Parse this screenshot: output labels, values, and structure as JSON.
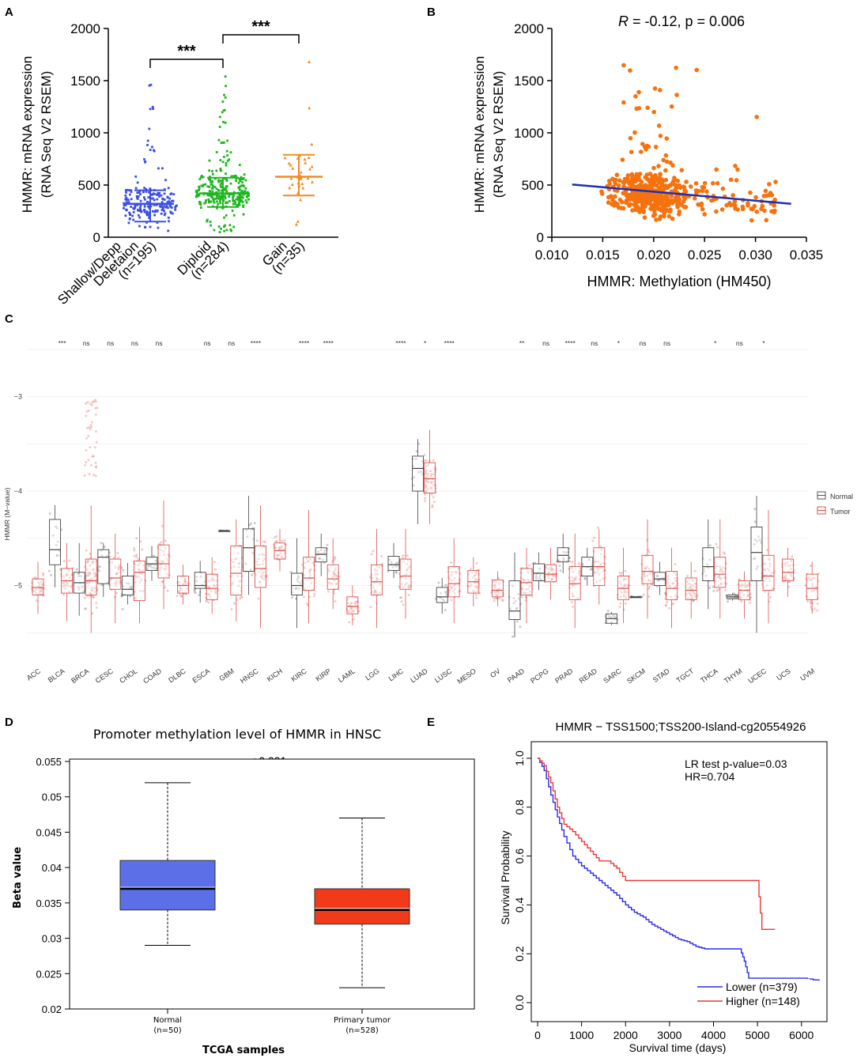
{
  "figure": {
    "panel_labels": [
      "A",
      "B",
      "C",
      "D",
      "E"
    ]
  },
  "chart_data": [
    {
      "panel": "A",
      "type": "scatter",
      "subtype": "dot-plot",
      "title": "",
      "ylabel_line1": "HMMR: mRNA expression",
      "ylabel_line2": "(RNA Seq V2 RSEM)",
      "ylim": [
        0,
        2000
      ],
      "yticks": [
        0,
        500,
        1000,
        1500,
        2000
      ],
      "groups": [
        {
          "label_line1": "Shallow/Depp",
          "label_line2": "Deletaion",
          "label_line3": "(n=195)",
          "n": 195,
          "median": 320,
          "q1": 150,
          "q3": 450,
          "max": 1460,
          "color": "#3b4fe0"
        },
        {
          "label_line1": "Diploid",
          "label_line2": "(n=284)",
          "n": 284,
          "median": 420,
          "q1": 290,
          "q3": 570,
          "max": 1540,
          "color": "#1fb51f"
        },
        {
          "label_line1": "Gain",
          "label_line2": "(n=35)",
          "n": 35,
          "median": 580,
          "q1": 400,
          "q3": 790,
          "max": 1680,
          "color": "#f5891f"
        }
      ],
      "significance": [
        {
          "from": 0,
          "to": 1,
          "label": "***"
        },
        {
          "from": 1,
          "to": 2,
          "label": "***"
        }
      ]
    },
    {
      "panel": "B",
      "type": "scatter",
      "title": "R = -0.12, p = 0.006",
      "title_r": "R",
      "title_rest": " = -0.12, p = 0.006",
      "xlabel": "HMMR: Methylation (HM450)",
      "ylabel_line1": "HMMR: mRNA expression",
      "ylabel_line2": "(RNA Seq V2 RSEM)",
      "xlim": [
        0.01,
        0.035
      ],
      "ylim": [
        0,
        2000
      ],
      "xticks": [
        "0.010",
        "0.015",
        "0.020",
        "0.025",
        "0.030",
        "0.035"
      ],
      "yticks": [
        0,
        500,
        1000,
        1500,
        2000
      ],
      "n_points": 514,
      "point_color": "#f5730f",
      "regression": {
        "x": [
          0.012,
          0.0335
        ],
        "y": [
          505,
          320
        ],
        "color": "#1a2fb8"
      }
    },
    {
      "panel": "C",
      "type": "box",
      "ylabel": "HMMR (M−value)",
      "yticks": [
        "−3",
        "−4",
        "−5"
      ],
      "ytick_values": [
        -3,
        -4,
        -5
      ],
      "ylim": [
        -5.85,
        -2.4
      ],
      "legend": {
        "position": "right",
        "entries": [
          {
            "name": "Normal",
            "color": "#555555"
          },
          {
            "name": "Tumor",
            "color": "#d9534f"
          }
        ]
      },
      "cancers": [
        {
          "name": "ACC",
          "sig": "",
          "tumor": {
            "med": -5.02,
            "q1": -5.1,
            "q3": -4.93,
            "lo": -5.3,
            "hi": -4.75
          }
        },
        {
          "name": "BLCA",
          "sig": "***",
          "normal": {
            "med": -4.62,
            "q1": -4.78,
            "q3": -4.3,
            "lo": -5.02,
            "hi": -4.15
          },
          "tumor": {
            "med": -4.95,
            "q1": -5.08,
            "q3": -4.82,
            "lo": -5.38,
            "hi": -4.55
          }
        },
        {
          "name": "BRCA",
          "sig": "ns",
          "normal": {
            "med": -4.97,
            "q1": -5.08,
            "q3": -4.86,
            "lo": -5.32,
            "hi": -4.55
          },
          "tumor": {
            "med": -4.95,
            "q1": -5.1,
            "q3": -4.72,
            "lo": -5.5,
            "hi": -4.15
          }
        },
        {
          "name": "CESC",
          "sig": "ns",
          "normal": {
            "med": -4.7,
            "q1": -4.98,
            "q3": -4.62,
            "lo": -5.12,
            "hi": -4.55
          },
          "tumor": {
            "med": -4.92,
            "q1": -5.04,
            "q3": -4.72,
            "lo": -5.4,
            "hi": -4.45
          }
        },
        {
          "name": "CHOL",
          "sig": "ns",
          "normal": {
            "med": -5.04,
            "q1": -5.1,
            "q3": -4.9,
            "lo": -5.2,
            "hi": -4.76
          },
          "tumor": {
            "med": -4.86,
            "q1": -5.16,
            "q3": -4.74,
            "lo": -5.4,
            "hi": -4.38
          }
        },
        {
          "name": "COAD",
          "sig": "ns",
          "normal": {
            "med": -4.77,
            "q1": -4.84,
            "q3": -4.7,
            "lo": -4.95,
            "hi": -4.58
          },
          "tumor": {
            "med": -4.77,
            "q1": -4.92,
            "q3": -4.57,
            "lo": -5.25,
            "hi": -4.1
          }
        },
        {
          "name": "DLBC",
          "sig": "",
          "tumor": {
            "med": -5.0,
            "q1": -5.08,
            "q3": -4.9,
            "lo": -5.2,
            "hi": -4.78
          }
        },
        {
          "name": "ESCA",
          "sig": "ns",
          "normal": {
            "med": -5.0,
            "q1": -5.03,
            "q3": -4.86,
            "lo": -5.18,
            "hi": -4.74
          },
          "tumor": {
            "med": -5.03,
            "q1": -5.15,
            "q3": -4.88,
            "lo": -5.3,
            "hi": -4.7
          }
        },
        {
          "name": "GBM",
          "sig": "ns",
          "normal": {
            "med": -4.42,
            "q1": -4.42,
            "q3": -4.42,
            "lo": -4.42,
            "hi": -4.42
          },
          "tumor": {
            "med": -4.87,
            "q1": -5.1,
            "q3": -4.58,
            "lo": -5.38,
            "hi": -4.3
          }
        },
        {
          "name": "HNSC",
          "sig": "****",
          "normal": {
            "med": -4.6,
            "q1": -4.85,
            "q3": -4.4,
            "lo": -5.1,
            "hi": -4.05
          },
          "tumor": {
            "med": -4.82,
            "q1": -5.02,
            "q3": -4.58,
            "lo": -5.45,
            "hi": -4.15
          }
        },
        {
          "name": "KICH",
          "sig": "",
          "tumor": {
            "med": -4.63,
            "q1": -4.72,
            "q3": -4.55,
            "lo": -4.85,
            "hi": -4.4
          }
        },
        {
          "name": "KIRC",
          "sig": "****",
          "normal": {
            "med": -5.0,
            "q1": -5.1,
            "q3": -4.87,
            "lo": -5.45,
            "hi": -4.5
          },
          "tumor": {
            "med": -4.92,
            "q1": -5.05,
            "q3": -4.7,
            "lo": -5.4,
            "hi": -4.2
          }
        },
        {
          "name": "KIRP",
          "sig": "****",
          "normal": {
            "med": -4.67,
            "q1": -4.75,
            "q3": -4.6,
            "lo": -4.9,
            "hi": -4.45
          },
          "tumor": {
            "med": -4.93,
            "q1": -5.04,
            "q3": -4.78,
            "lo": -5.25,
            "hi": -4.5
          }
        },
        {
          "name": "LAML",
          "sig": "",
          "tumor": {
            "med": -5.22,
            "q1": -5.3,
            "q3": -5.12,
            "lo": -5.42,
            "hi": -5.0
          }
        },
        {
          "name": "LGG",
          "sig": "",
          "tumor": {
            "med": -4.96,
            "q1": -5.1,
            "q3": -4.78,
            "lo": -5.45,
            "hi": -4.4
          }
        },
        {
          "name": "LIHC",
          "sig": "****",
          "normal": {
            "med": -4.78,
            "q1": -4.84,
            "q3": -4.69,
            "lo": -4.92,
            "hi": -4.55
          },
          "tumor": {
            "med": -4.9,
            "q1": -5.04,
            "q3": -4.72,
            "lo": -5.35,
            "hi": -4.4
          }
        },
        {
          "name": "LUAD",
          "sig": "*",
          "normal": {
            "med": -3.76,
            "q1": -4.0,
            "q3": -3.63,
            "lo": -4.35,
            "hi": -3.45
          },
          "tumor": {
            "med": -3.87,
            "q1": -4.02,
            "q3": -3.7,
            "lo": -4.35,
            "hi": -3.35
          }
        },
        {
          "name": "LUSC",
          "sig": "****",
          "normal": {
            "med": -5.12,
            "q1": -5.18,
            "q3": -5.02,
            "lo": -5.3,
            "hi": -4.92
          },
          "tumor": {
            "med": -4.98,
            "q1": -5.12,
            "q3": -4.8,
            "lo": -5.4,
            "hi": -4.5
          }
        },
        {
          "name": "MESO",
          "sig": "",
          "tumor": {
            "med": -4.96,
            "q1": -5.08,
            "q3": -4.84,
            "lo": -5.22,
            "hi": -4.7
          }
        },
        {
          "name": "OV",
          "sig": "",
          "tumor": {
            "med": -5.05,
            "q1": -5.12,
            "q3": -4.94,
            "lo": -5.22,
            "hi": -4.85
          }
        },
        {
          "name": "PAAD",
          "sig": "**",
          "normal": {
            "med": -5.27,
            "q1": -5.36,
            "q3": -4.95,
            "lo": -5.55,
            "hi": -4.65
          },
          "tumor": {
            "med": -4.97,
            "q1": -5.1,
            "q3": -4.82,
            "lo": -5.4,
            "hi": -4.6
          }
        },
        {
          "name": "PCPG",
          "sig": "ns",
          "normal": {
            "med": -4.87,
            "q1": -4.95,
            "q3": -4.77,
            "lo": -5.05,
            "hi": -4.65
          },
          "tumor": {
            "med": -4.88,
            "q1": -4.96,
            "q3": -4.78,
            "lo": -5.15,
            "hi": -4.6
          }
        },
        {
          "name": "PRAD",
          "sig": "****",
          "normal": {
            "med": -4.68,
            "q1": -4.75,
            "q3": -4.6,
            "lo": -4.87,
            "hi": -4.45
          },
          "tumor": {
            "med": -4.98,
            "q1": -5.15,
            "q3": -4.8,
            "lo": -5.45,
            "hi": -4.45
          }
        },
        {
          "name": "READ",
          "sig": "ns",
          "normal": {
            "med": -4.8,
            "q1": -4.9,
            "q3": -4.7,
            "lo": -5.0,
            "hi": -4.6
          },
          "tumor": {
            "med": -4.8,
            "q1": -5.0,
            "q3": -4.6,
            "lo": -5.2,
            "hi": -4.4
          }
        },
        {
          "name": "SARC",
          "sig": "*",
          "normal": {
            "med": -5.35,
            "q1": -5.4,
            "q3": -5.3,
            "lo": -5.42,
            "hi": -5.28
          },
          "tumor": {
            "med": -5.03,
            "q1": -5.15,
            "q3": -4.9,
            "lo": -5.4,
            "hi": -4.6
          }
        },
        {
          "name": "SKCM",
          "sig": "ns",
          "normal": {
            "med": -5.12,
            "q1": -5.12,
            "q3": -5.12,
            "lo": -5.12,
            "hi": -5.12
          },
          "tumor": {
            "med": -4.85,
            "q1": -4.98,
            "q3": -4.68,
            "lo": -5.35,
            "hi": -4.3
          }
        },
        {
          "name": "STAD",
          "sig": "ns",
          "normal": {
            "med": -4.93,
            "q1": -5.0,
            "q3": -4.86,
            "lo": -5.1,
            "hi": -4.75
          },
          "tumor": {
            "med": -5.03,
            "q1": -5.15,
            "q3": -4.85,
            "lo": -5.45,
            "hi": -4.6
          }
        },
        {
          "name": "TGCT",
          "sig": "",
          "tumor": {
            "med": -5.05,
            "q1": -5.15,
            "q3": -4.92,
            "lo": -5.35,
            "hi": -4.75
          }
        },
        {
          "name": "THCA",
          "sig": "*",
          "normal": {
            "med": -4.8,
            "q1": -4.95,
            "q3": -4.6,
            "lo": -5.25,
            "hi": -4.3
          },
          "tumor": {
            "med": -4.88,
            "q1": -5.02,
            "q3": -4.7,
            "lo": -5.35,
            "hi": -4.3
          }
        },
        {
          "name": "THYM",
          "sig": "ns",
          "normal": {
            "med": -5.12,
            "q1": -5.14,
            "q3": -5.1,
            "lo": -5.16,
            "hi": -5.08
          },
          "tumor": {
            "med": -5.05,
            "q1": -5.15,
            "q3": -4.95,
            "lo": -5.35,
            "hi": -4.85
          }
        },
        {
          "name": "UCEC",
          "sig": "*",
          "normal": {
            "med": -4.65,
            "q1": -4.95,
            "q3": -4.38,
            "lo": -5.5,
            "hi": -4.05
          },
          "tumor": {
            "med": -4.9,
            "q1": -5.05,
            "q3": -4.68,
            "lo": -5.4,
            "hi": -4.2
          }
        },
        {
          "name": "UCS",
          "sig": "",
          "tumor": {
            "med": -4.86,
            "q1": -4.95,
            "q3": -4.72,
            "lo": -5.12,
            "hi": -4.6
          }
        },
        {
          "name": "UVM",
          "sig": "",
          "tumor": {
            "med": -5.03,
            "q1": -5.15,
            "q3": -4.88,
            "lo": -5.3,
            "hi": -4.75
          }
        }
      ]
    },
    {
      "panel": "D",
      "type": "box",
      "title": "Promoter methylation level of HMMR in HNSC",
      "annotation_p": "p",
      "annotation_rest": " < 0.001",
      "xlabel": "TCGA samples",
      "ylabel": "Beta value",
      "ylim": [
        0.02,
        0.055
      ],
      "yticks": [
        "0.055",
        "0.05",
        "0.045",
        "0.04",
        "0.035",
        "0.03",
        "0.025",
        "0.02"
      ],
      "ytick_values": [
        0.055,
        0.05,
        0.045,
        0.04,
        0.035,
        0.03,
        0.025,
        0.02
      ],
      "groups": [
        {
          "label": "Normal",
          "n_label": "(n=50)",
          "min": 0.029,
          "q1": 0.034,
          "median": 0.037,
          "q3": 0.041,
          "max": 0.052,
          "color": "#5b6fe6"
        },
        {
          "label": "Primary tumor",
          "n_label": "(n=528)",
          "min": 0.023,
          "q1": 0.032,
          "median": 0.034,
          "q3": 0.037,
          "max": 0.047,
          "color": "#f03a1a"
        }
      ]
    },
    {
      "panel": "E",
      "type": "line",
      "subtype": "kaplan-meier",
      "title": "HMMR − TSS1500;TSS200-Island-cg20554926",
      "annotation_line1": "LR test p-value=0.03",
      "annotation_line2": "HR=0.704",
      "xlabel": "Survival time (days)",
      "ylabel": "Survival Probability",
      "xlim": [
        0,
        6500
      ],
      "ylim": [
        0,
        1.0
      ],
      "xticks": [
        "0",
        "1000",
        "2000",
        "3000",
        "4000",
        "5000",
        "6000"
      ],
      "xtick_values": [
        0,
        1000,
        2000,
        3000,
        4000,
        5000,
        6000
      ],
      "yticks": [
        "0.0",
        "0.2",
        "0.4",
        "0.6",
        "0.8",
        "1.0"
      ],
      "ytick_values": [
        0,
        0.2,
        0.4,
        0.6,
        0.8,
        1.0
      ],
      "legend": {
        "position": "bottom-right"
      },
      "series": [
        {
          "name": "Lower (n=379)",
          "color": "#2b2bea",
          "x": [
            0,
            150,
            300,
            450,
            600,
            800,
            1000,
            1200,
            1400,
            1600,
            1800,
            2000,
            2200,
            2400,
            2600,
            2800,
            3000,
            3200,
            3400,
            3600,
            3800,
            4000,
            4200,
            4400,
            4600,
            4700,
            4800,
            5000,
            5500,
            6000,
            6400
          ],
          "y": [
            1.0,
            0.95,
            0.85,
            0.76,
            0.68,
            0.6,
            0.56,
            0.53,
            0.5,
            0.47,
            0.44,
            0.4,
            0.37,
            0.35,
            0.32,
            0.3,
            0.28,
            0.26,
            0.25,
            0.23,
            0.22,
            0.22,
            0.22,
            0.22,
            0.22,
            0.17,
            0.1,
            0.1,
            0.1,
            0.1,
            0.09
          ]
        },
        {
          "name": "Higher (n=148)",
          "color": "#e83838",
          "x": [
            0,
            150,
            300,
            450,
            600,
            800,
            1000,
            1200,
            1400,
            1600,
            1800,
            2000,
            2500,
            3000,
            3500,
            4000,
            4500,
            5000,
            5100,
            5200,
            5400
          ],
          "y": [
            1.0,
            0.97,
            0.9,
            0.8,
            0.73,
            0.7,
            0.66,
            0.62,
            0.58,
            0.58,
            0.55,
            0.5,
            0.5,
            0.5,
            0.5,
            0.5,
            0.5,
            0.5,
            0.3,
            0.3,
            0.3
          ]
        }
      ]
    }
  ]
}
